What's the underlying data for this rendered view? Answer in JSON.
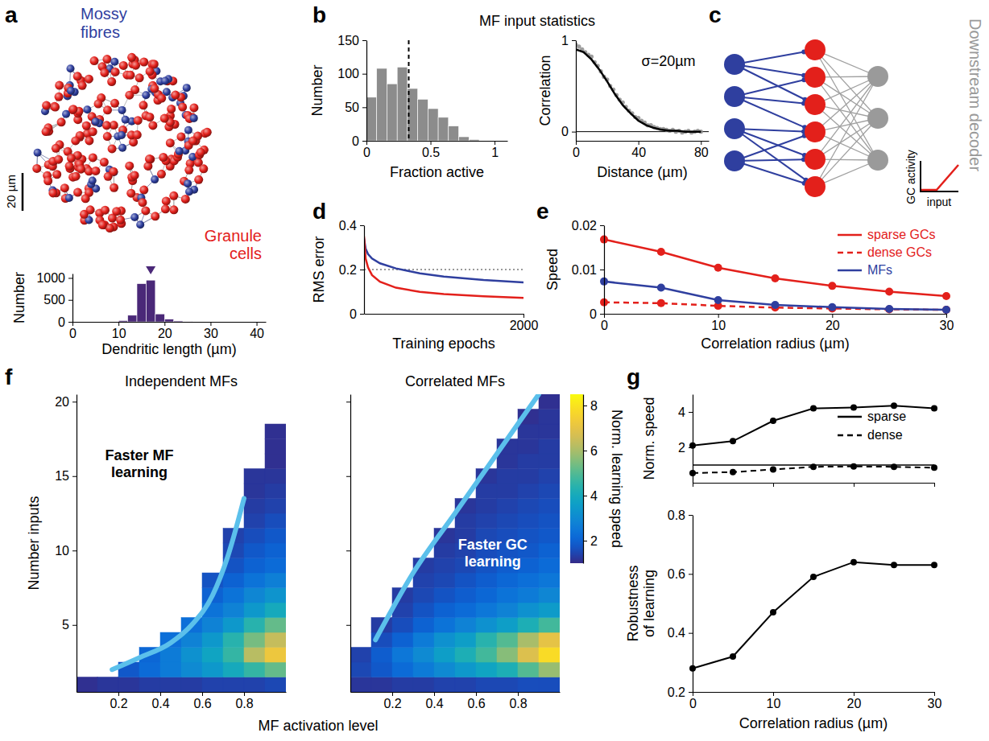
{
  "chart_data": [
    {
      "type": "histogram",
      "xlabel": "Dendritic length (µm)",
      "ylabel": "Number",
      "bins": [
        10,
        12,
        14,
        16,
        18,
        20,
        22,
        24,
        26
      ],
      "counts": [
        30,
        150,
        870,
        950,
        180,
        60,
        20,
        8
      ],
      "color": "#4a2878",
      "mean": 17,
      "xlim": [
        0,
        42
      ],
      "ylim": [
        0,
        1100
      ],
      "xticks": [
        0,
        10,
        20,
        30,
        40
      ],
      "yticks": [
        0,
        500,
        1000
      ]
    },
    {
      "type": "histogram",
      "panel": "b",
      "title": "MF input statistics",
      "xlabel": "Fraction active",
      "ylabel": "Number",
      "bins": [
        0,
        0.08,
        0.16,
        0.24,
        0.32,
        0.4,
        0.48,
        0.56,
        0.64,
        0.72,
        0.8,
        0.88
      ],
      "counts": [
        65,
        108,
        85,
        110,
        78,
        62,
        48,
        35,
        22,
        6,
        2
      ],
      "color": "#8c8c8c",
      "mean": 0.33,
      "xlim": [
        0,
        1.1
      ],
      "ylim": [
        0,
        150
      ],
      "xticks": [
        0,
        0.5,
        1
      ],
      "yticks": [
        0,
        50,
        100,
        150
      ]
    },
    {
      "type": "scatter",
      "xlabel": "Distance (µm)",
      "ylabel": "Correlation",
      "annotations": [
        {
          "text": "σ=20µm",
          "x": 42,
          "y": 0.72
        }
      ],
      "hlines": [
        0
      ],
      "series": [
        {
          "type": "scatter",
          "color": "#8c8c8c",
          "marker": "circle",
          "x": [
            0,
            2,
            4,
            6,
            8,
            10,
            12,
            14,
            16,
            18,
            20,
            22,
            24,
            26,
            28,
            30,
            32,
            34,
            36,
            38,
            40,
            42,
            44,
            46,
            48,
            50,
            52,
            54,
            56,
            58,
            60,
            62,
            64,
            66,
            68,
            70,
            72,
            74,
            76,
            78,
            80
          ],
          "values": [
            0.95,
            0.93,
            0.9,
            0.87,
            0.84,
            0.82,
            0.76,
            0.72,
            0.66,
            0.6,
            0.57,
            0.5,
            0.46,
            0.4,
            0.35,
            0.32,
            0.27,
            0.23,
            0.2,
            0.16,
            0.15,
            0.12,
            0.1,
            0.07,
            0.07,
            0.05,
            0.04,
            0.03,
            0.03,
            0.02,
            0.01,
            0.02,
            0,
            0.01,
            -0.01,
            0,
            0.01,
            -0.01,
            0,
            0.01,
            0
          ]
        },
        {
          "type": "line",
          "color": "#000000",
          "x": [
            0,
            5,
            10,
            15,
            20,
            25,
            30,
            35,
            40,
            45,
            50,
            55,
            60,
            65,
            70,
            75,
            80
          ],
          "values": [
            0.9,
            0.87,
            0.79,
            0.68,
            0.55,
            0.41,
            0.29,
            0.2,
            0.12,
            0.07,
            0.04,
            0.02,
            0.01,
            0.01,
            0,
            0,
            0
          ]
        }
      ],
      "xlim": [
        0,
        85
      ],
      "ylim": [
        -0.1,
        1
      ],
      "xticks": [
        0,
        40,
        80
      ],
      "yticks": [
        0,
        1
      ]
    },
    {
      "type": "line",
      "panel": "d",
      "xlabel": "Training epochs",
      "ylabel": "RMS error",
      "hlines": [
        0.2
      ],
      "x": [
        0,
        20,
        50,
        100,
        200,
        400,
        700,
        1000,
        1500,
        2000
      ],
      "series": [
        {
          "color": "#2f3f9f",
          "line_style": "solid",
          "values": [
            0.34,
            0.295,
            0.27,
            0.25,
            0.228,
            0.205,
            0.183,
            0.168,
            0.153,
            0.142
          ]
        },
        {
          "color": "#e3201b",
          "line_style": "solid",
          "values": [
            0.35,
            0.25,
            0.21,
            0.175,
            0.145,
            0.118,
            0.099,
            0.089,
            0.079,
            0.072
          ]
        }
      ],
      "xlim": [
        0,
        2000
      ],
      "ylim": [
        0,
        0.4
      ],
      "xticks": [
        2000
      ],
      "yticks": [
        0,
        0.2,
        0.4
      ]
    },
    {
      "type": "line",
      "panel": "e",
      "xlabel": "Correlation radius (µm)",
      "ylabel": "Speed",
      "legend": "upper right",
      "x": [
        0,
        5,
        10,
        15,
        20,
        25,
        30
      ],
      "series": [
        {
          "name": "sparse GCs",
          "color": "#e3201b",
          "line_style": "solid",
          "marker": "circle",
          "values": [
            0.0168,
            0.014,
            0.0104,
            0.008,
            0.0063,
            0.005,
            0.004
          ]
        },
        {
          "name": "dense GCs",
          "color": "#e3201b",
          "line_style": "dashed",
          "marker": "circle",
          "values": [
            0.0026,
            0.0024,
            0.0018,
            0.0014,
            0.0012,
            0.001,
            0.0009
          ]
        },
        {
          "name": "MFs",
          "color": "#2f3f9f",
          "line_style": "solid",
          "marker": "circle",
          "values": [
            0.0073,
            0.0059,
            0.0031,
            0.002,
            0.0015,
            0.0011,
            0.0009
          ]
        }
      ],
      "xlim": [
        0,
        30
      ],
      "ylim": [
        0,
        0.02
      ],
      "xticks": [
        0,
        10,
        20,
        30
      ],
      "yticks": [
        0,
        0.01,
        0.02
      ]
    },
    {
      "type": "heatmap",
      "panel": "f",
      "title": "Independent MFs",
      "xlabel": "MF activation level",
      "ylabel": "Number inputs",
      "x": [
        0.05,
        0.15,
        0.25,
        0.35,
        0.45,
        0.55,
        0.65,
        0.75,
        0.85,
        0.95
      ],
      "y": [
        1,
        2,
        3,
        4,
        5,
        6,
        7,
        8,
        9,
        10,
        11,
        12,
        13,
        14,
        15,
        16,
        17,
        18,
        19,
        20
      ],
      "z": [
        [
          1.1,
          1.2,
          1.2,
          1.3,
          1.3,
          1.3,
          1.4,
          1.4,
          1.4,
          1.5
        ],
        [
          null,
          null,
          1.8,
          2.2,
          2.6,
          3,
          3.4,
          4,
          4.6,
          5.2
        ],
        [
          null,
          null,
          null,
          2.1,
          2.6,
          3.2,
          3.8,
          4.6,
          6.2,
          7.2
        ],
        [
          null,
          null,
          null,
          null,
          2.3,
          2.8,
          3.4,
          4.4,
          5.4,
          6.4
        ],
        [
          null,
          null,
          null,
          null,
          null,
          2.3,
          2.8,
          3.4,
          4.4,
          5.2
        ],
        [
          null,
          null,
          null,
          null,
          null,
          null,
          2.4,
          2.8,
          3.4,
          4
        ],
        [
          null,
          null,
          null,
          null,
          null,
          null,
          2,
          2.4,
          2.9,
          3.3
        ],
        [
          null,
          null,
          null,
          null,
          null,
          null,
          1.7,
          2,
          2.4,
          2.7
        ],
        [
          null,
          null,
          null,
          null,
          null,
          null,
          null,
          1.7,
          2,
          2.2
        ],
        [
          null,
          null,
          null,
          null,
          null,
          null,
          null,
          1.5,
          1.8,
          2
        ],
        [
          null,
          null,
          null,
          null,
          null,
          null,
          null,
          1.4,
          1.6,
          1.8
        ],
        [
          null,
          null,
          null,
          null,
          null,
          null,
          null,
          null,
          1.4,
          1.6
        ],
        [
          null,
          null,
          null,
          null,
          null,
          null,
          null,
          null,
          1.3,
          1.4
        ],
        [
          null,
          null,
          null,
          null,
          null,
          null,
          null,
          null,
          1.2,
          1.3
        ],
        [
          null,
          null,
          null,
          null,
          null,
          null,
          null,
          null,
          1.2,
          1.2
        ],
        [
          null,
          null,
          null,
          null,
          null,
          null,
          null,
          null,
          null,
          1.1
        ],
        [
          null,
          null,
          null,
          null,
          null,
          null,
          null,
          null,
          null,
          1.1
        ],
        [
          null,
          null,
          null,
          null,
          null,
          null,
          null,
          null,
          null,
          1.1
        ],
        [
          null,
          null,
          null,
          null,
          null,
          null,
          null,
          null,
          null,
          null
        ],
        [
          null,
          null,
          null,
          null,
          null,
          null,
          null,
          null,
          null,
          null
        ]
      ],
      "boundary": {
        "color": "#5bc0eb",
        "x": [
          0.17,
          0.3,
          0.45,
          0.55,
          0.65,
          0.72,
          0.8
        ],
        "y": [
          2,
          2.8,
          3.8,
          5,
          7,
          9.5,
          13.5
        ]
      },
      "annotations": [
        {
          "text": "Faster MF learning",
          "x": 0.3,
          "y": 15.5,
          "color": "#000000"
        }
      ],
      "xlim": [
        0,
        1
      ],
      "ylim": [
        0.5,
        20.5
      ],
      "xticks": [
        0.2,
        0.4,
        0.6,
        0.8
      ],
      "yticks": [
        5,
        10,
        15,
        20
      ]
    },
    {
      "type": "heatmap",
      "title": "Correlated MFs",
      "tick_labels": "x",
      "x": [
        0.05,
        0.15,
        0.25,
        0.35,
        0.45,
        0.55,
        0.65,
        0.75,
        0.85,
        0.95
      ],
      "y": [
        1,
        2,
        3,
        4,
        5,
        6,
        7,
        8,
        9,
        10,
        11,
        12,
        13,
        14,
        15,
        16,
        17,
        18,
        19,
        20
      ],
      "z": [
        [
          1.2,
          1.2,
          1.3,
          1.3,
          1.4,
          1.4,
          1.5,
          1.5,
          1.6,
          1.6
        ],
        [
          1.5,
          1.8,
          2.2,
          2.6,
          3,
          3.4,
          3.8,
          4.2,
          5,
          5.8
        ],
        [
          1.4,
          1.9,
          2.5,
          3,
          3.6,
          4.2,
          4.8,
          5.6,
          6.8,
          7.8
        ],
        [
          null,
          1.6,
          2,
          2.6,
          3.2,
          3.6,
          4.4,
          5,
          6,
          7
        ],
        [
          null,
          1.3,
          1.6,
          2,
          2.4,
          2.8,
          3.2,
          3.6,
          4.2,
          4.8
        ],
        [
          null,
          null,
          1.4,
          1.7,
          2,
          2.2,
          2.5,
          2.8,
          3.2,
          3.5
        ],
        [
          null,
          null,
          1.3,
          1.5,
          1.7,
          1.9,
          2.1,
          2.4,
          2.6,
          2.9
        ],
        [
          null,
          null,
          null,
          1.4,
          1.5,
          1.7,
          1.9,
          2.1,
          2.3,
          2.5
        ],
        [
          null,
          null,
          null,
          1.3,
          1.4,
          1.5,
          1.7,
          1.9,
          2,
          2.2
        ],
        [
          null,
          null,
          null,
          null,
          1.3,
          1.4,
          1.6,
          1.7,
          1.8,
          2
        ],
        [
          null,
          null,
          null,
          null,
          1.2,
          1.3,
          1.5,
          1.6,
          1.7,
          1.8
        ],
        [
          null,
          null,
          null,
          null,
          null,
          1.3,
          1.4,
          1.5,
          1.6,
          1.7
        ],
        [
          null,
          null,
          null,
          null,
          null,
          1.2,
          1.3,
          1.4,
          1.5,
          1.6
        ],
        [
          null,
          null,
          null,
          null,
          null,
          null,
          1.3,
          1.3,
          1.4,
          1.5
        ],
        [
          null,
          null,
          null,
          null,
          null,
          null,
          1.2,
          1.3,
          1.3,
          1.4
        ],
        [
          null,
          null,
          null,
          null,
          null,
          null,
          null,
          1.2,
          1.3,
          1.3
        ],
        [
          null,
          null,
          null,
          null,
          null,
          null,
          null,
          1.2,
          1.2,
          1.3
        ],
        [
          null,
          null,
          null,
          null,
          null,
          null,
          null,
          null,
          1.2,
          1.2
        ],
        [
          null,
          null,
          null,
          null,
          null,
          null,
          null,
          null,
          1.1,
          1.2
        ],
        [
          null,
          null,
          null,
          null,
          null,
          null,
          null,
          null,
          null,
          1.1
        ]
      ],
      "boundary": {
        "color": "#5bc0eb",
        "x": [
          0.12,
          0.3,
          0.5,
          0.7,
          0.9
        ],
        "y": [
          4,
          8.5,
          12.5,
          16.5,
          20.5
        ]
      },
      "annotations": [
        {
          "text": "Faster GC learning",
          "x": 0.68,
          "y": 9.5,
          "color": "#ffffff"
        }
      ],
      "colorbar": {
        "range": [
          1,
          8.5
        ],
        "ticks": [
          2,
          4,
          6,
          8
        ],
        "label": "Norm. learning speed"
      },
      "xlim": [
        0,
        1
      ],
      "ylim": [
        0.5,
        20.5
      ],
      "xticks": [
        0.2,
        0.4,
        0.6,
        0.8
      ],
      "yticks": [
        5,
        10,
        15,
        20
      ]
    },
    {
      "type": "line",
      "panel": "g",
      "ylabel": "Norm. speed",
      "legend": "upper right",
      "tick_labels": "y",
      "hlines": [
        1
      ],
      "x": [
        0,
        5,
        10,
        15,
        20,
        25,
        30
      ],
      "series": [
        {
          "name": "sparse",
          "color": "#000000",
          "line_style": "solid",
          "marker": "circle",
          "values": [
            2.1,
            2.35,
            3.5,
            4.2,
            4.25,
            4.35,
            4.2
          ]
        },
        {
          "name": "dense",
          "color": "#000000",
          "line_style": "dashed",
          "marker": "circle",
          "values": [
            0.55,
            0.6,
            0.75,
            0.9,
            0.92,
            0.9,
            0.85
          ]
        }
      ],
      "xlim": [
        0,
        30
      ],
      "ylim": [
        0,
        5
      ],
      "xticks": [
        0,
        10,
        20,
        30
      ],
      "yticks": [
        2,
        4
      ]
    },
    {
      "type": "line",
      "xlabel": "Correlation radius (µm)",
      "ylabel": "Robustness of learning",
      "x": [
        0,
        5,
        10,
        15,
        20,
        25,
        30
      ],
      "series": [
        {
          "color": "#000000",
          "line_style": "solid",
          "marker": "circle",
          "values": [
            0.28,
            0.32,
            0.47,
            0.59,
            0.64,
            0.63,
            0.63
          ]
        }
      ],
      "xlim": [
        0,
        30
      ],
      "ylim": [
        0.2,
        0.8
      ],
      "xticks": [
        0,
        10,
        20,
        30
      ],
      "yticks": [
        0.2,
        0.4,
        0.6,
        0.8
      ]
    }
  ],
  "diagrams": {
    "a": {
      "panel": "a",
      "labels": [
        {
          "text": "Mossy fibres",
          "color": "#2f3f9f"
        },
        {
          "text": "Granule cells",
          "color": "#e3201b"
        }
      ],
      "scale_bar": "20 µm"
    },
    "c": {
      "panel": "c",
      "decoder_label": "Downstream decoder",
      "inset_ylabel": "GC activity",
      "inset_xlabel": "input"
    }
  }
}
